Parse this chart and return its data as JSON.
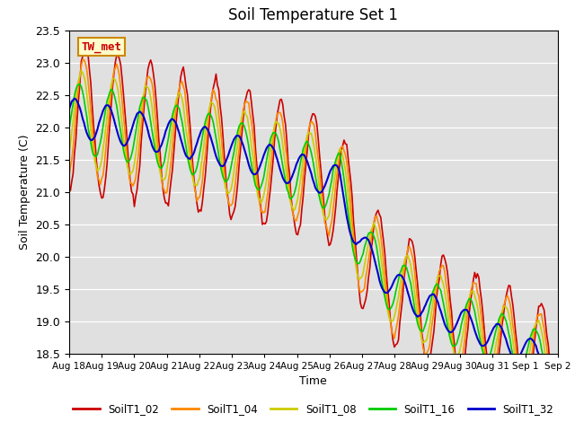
{
  "title": "Soil Temperature Set 1",
  "ylabel": "Soil Temperature (C)",
  "xlabel": "Time",
  "ylim": [
    18.5,
    23.5
  ],
  "yticks": [
    18.5,
    19.0,
    19.5,
    20.0,
    20.5,
    21.0,
    21.5,
    22.0,
    22.5,
    23.0,
    23.5
  ],
  "background_color": "#e0e0e0",
  "annotation_text": "TW_met",
  "annotation_bg": "#ffffcc",
  "annotation_border": "#cc8800",
  "annotation_text_color": "#cc0000",
  "series_colors": [
    "#cc0000",
    "#ff8800",
    "#cccc00",
    "#00cc00",
    "#0000cc"
  ],
  "series_linewidths": [
    1.2,
    1.2,
    1.2,
    1.2,
    1.5
  ],
  "x_tick_positions": [
    0,
    1,
    2,
    3,
    4,
    5,
    6,
    7,
    8,
    9,
    10,
    11,
    12,
    13,
    14,
    15
  ],
  "x_tick_labels": [
    "Aug 18",
    "Aug 19",
    "Aug 20",
    "Aug 21",
    "Aug 22",
    "Aug 23",
    "Aug 24",
    "Aug 25",
    "Aug 26",
    "Aug 27",
    "Aug 28",
    "Aug 29",
    "Aug 30",
    "Aug 31",
    "Sep 1",
    "Sep 2"
  ],
  "grid_color": "#ffffff",
  "legend_labels": [
    "SoilT1_02",
    "SoilT1_04",
    "SoilT1_08",
    "SoilT1_16",
    "SoilT1_32"
  ],
  "n_days": 15,
  "n_points": 360
}
